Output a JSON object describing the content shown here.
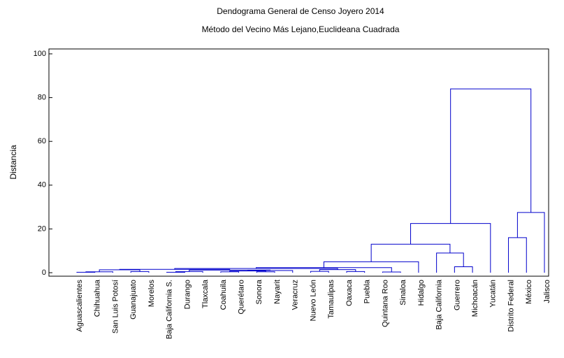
{
  "chart_data": {
    "type": "dendrogram",
    "title": "Dendograma General de Censo Joyero 2014",
    "subtitle": "Método del Vecino Más Lejano,Euclideana Cuadrada",
    "y_label": "Distancia",
    "color": "#0000cc",
    "categories": [
      "Aguascalientes",
      "Chihuahua",
      "San Luis Potosí",
      "Guanajuato",
      "Morelos",
      "Baja California S.",
      "Durango",
      "Tlaxcala",
      "Coahuila",
      "Querétaro",
      "Sonora",
      "Nayarit",
      "Veracruz",
      "Nuevo León",
      "Tamaulipas",
      "Oaxaca",
      "Puebla",
      "Quintana Roo",
      "Sinaloa",
      "Hidalgo",
      "Baja California",
      "Guerrero",
      "Michoacán",
      "Yucatán",
      "Distrito Federal",
      "México",
      "Jalisco"
    ],
    "merges": [
      {
        "left": 0,
        "right": 1,
        "height": 0.2
      },
      {
        "left": 27,
        "right": 2,
        "height": 0.4
      },
      {
        "left": 3,
        "right": 4,
        "height": 0.5
      },
      {
        "left": 28,
        "right": 29,
        "height": 1.3
      },
      {
        "left": 5,
        "right": 6,
        "height": 0.2
      },
      {
        "left": 31,
        "right": 7,
        "height": 0.5
      },
      {
        "left": 8,
        "right": 9,
        "height": 0.4
      },
      {
        "left": 10,
        "right": 11,
        "height": 0.4
      },
      {
        "left": 33,
        "right": 34,
        "height": 0.8
      },
      {
        "left": 35,
        "right": 12,
        "height": 1.0
      },
      {
        "left": 32,
        "right": 36,
        "height": 1.2
      },
      {
        "left": 30,
        "right": 37,
        "height": 1.5
      },
      {
        "left": 13,
        "right": 14,
        "height": 0.6
      },
      {
        "left": 15,
        "right": 16,
        "height": 0.5
      },
      {
        "left": 17,
        "right": 18,
        "height": 0.3
      },
      {
        "left": 39,
        "right": 40,
        "height": 1.4
      },
      {
        "left": 38,
        "right": 42,
        "height": 1.9
      },
      {
        "left": 43,
        "right": 41,
        "height": 2.3
      },
      {
        "left": 44,
        "right": 19,
        "height": 5
      },
      {
        "left": 21,
        "right": 22,
        "height": 2.7
      },
      {
        "left": 20,
        "right": 46,
        "height": 9
      },
      {
        "left": 45,
        "right": 47,
        "height": 13
      },
      {
        "left": 48,
        "right": 23,
        "height": 22.5
      },
      {
        "left": 24,
        "right": 25,
        "height": 16
      },
      {
        "left": 50,
        "right": 26,
        "height": 27.5
      },
      {
        "left": 49,
        "right": 51,
        "height": 84
      }
    ],
    "ylim": [
      0,
      100
    ],
    "yticks": [
      0,
      20,
      40,
      60,
      80,
      100
    ]
  }
}
